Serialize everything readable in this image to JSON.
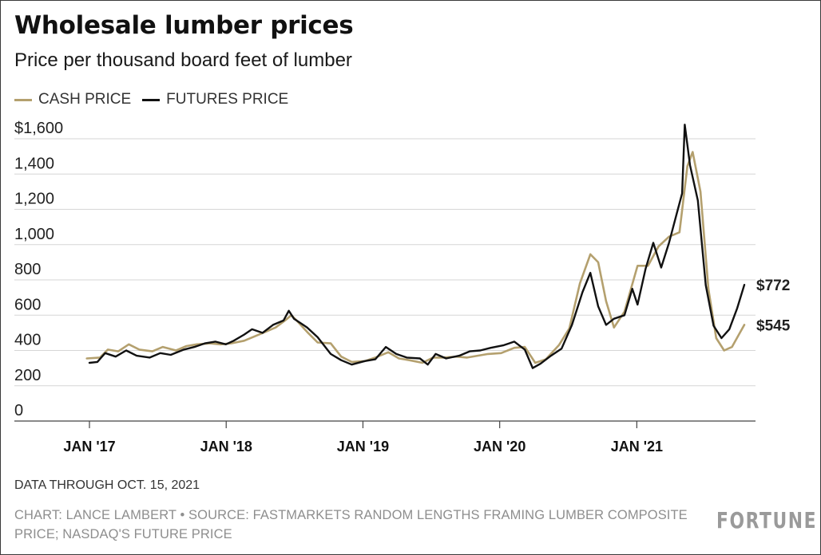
{
  "header": {
    "title": "Wholesale lumber prices",
    "subtitle": "Price per thousand board feet of lumber"
  },
  "legend": [
    {
      "label": "CASH PRICE",
      "color": "#b4a06e"
    },
    {
      "label": "FUTURES PRICE",
      "color": "#111111"
    }
  ],
  "footer": {
    "note": "DATA THROUGH OCT. 15, 2021",
    "credit": "CHART: LANCE LAMBERT • SOURCE: FASTMARKETS RANDOM LENGTHS FRAMING LUMBER COMPOSITE PRICE; NASDAQ'S FUTURE PRICE",
    "brand": "FORTUNE"
  },
  "chart_data": {
    "type": "line",
    "title": "Wholesale lumber prices",
    "subtitle": "Price per thousand board feet of lumber",
    "xlabel": "",
    "ylabel": "",
    "ylim": [
      0,
      1600
    ],
    "xlim": [
      "2016-12-01",
      "2021-10-31"
    ],
    "y_ticks": [
      {
        "value": 0,
        "label": "0"
      },
      {
        "value": 200,
        "label": "200"
      },
      {
        "value": 400,
        "label": "400"
      },
      {
        "value": 600,
        "label": "600"
      },
      {
        "value": 800,
        "label": "800"
      },
      {
        "value": 1000,
        "label": "1,000"
      },
      {
        "value": 1200,
        "label": "1,200"
      },
      {
        "value": 1400,
        "label": "1,400"
      },
      {
        "value": 1600,
        "label": "$1,600"
      }
    ],
    "x_ticks": [
      {
        "date": "2017-01-01",
        "label": "JAN '17"
      },
      {
        "date": "2018-01-01",
        "label": "JAN '18"
      },
      {
        "date": "2019-01-01",
        "label": "JAN '19"
      },
      {
        "date": "2020-01-01",
        "label": "JAN '20"
      },
      {
        "date": "2021-01-01",
        "label": "JAN '21"
      }
    ],
    "grid": true,
    "legend_position": "top-left",
    "series": [
      {
        "name": "CASH PRICE",
        "color": "#b4a06e",
        "points": [
          [
            "2016-12-25",
            355
          ],
          [
            "2017-01-29",
            360
          ],
          [
            "2017-02-19",
            405
          ],
          [
            "2017-03-19",
            395
          ],
          [
            "2017-04-16",
            435
          ],
          [
            "2017-05-14",
            405
          ],
          [
            "2017-06-18",
            395
          ],
          [
            "2017-07-16",
            420
          ],
          [
            "2017-08-20",
            400
          ],
          [
            "2017-09-17",
            425
          ],
          [
            "2017-10-15",
            435
          ],
          [
            "2017-11-19",
            440
          ],
          [
            "2017-12-17",
            435
          ],
          [
            "2018-01-14",
            440
          ],
          [
            "2018-02-18",
            455
          ],
          [
            "2018-03-18",
            480
          ],
          [
            "2018-04-15",
            505
          ],
          [
            "2018-05-13",
            530
          ],
          [
            "2018-06-10",
            575
          ],
          [
            "2018-06-24",
            600
          ],
          [
            "2018-07-08",
            570
          ],
          [
            "2018-08-05",
            505
          ],
          [
            "2018-09-02",
            445
          ],
          [
            "2018-10-07",
            440
          ],
          [
            "2018-11-04",
            365
          ],
          [
            "2018-12-02",
            335
          ],
          [
            "2019-01-06",
            340
          ],
          [
            "2019-02-03",
            360
          ],
          [
            "2019-03-10",
            390
          ],
          [
            "2019-04-07",
            355
          ],
          [
            "2019-05-05",
            345
          ],
          [
            "2019-06-09",
            330
          ],
          [
            "2019-07-07",
            360
          ],
          [
            "2019-08-04",
            360
          ],
          [
            "2019-09-08",
            365
          ],
          [
            "2019-10-06",
            360
          ],
          [
            "2019-11-03",
            370
          ],
          [
            "2019-12-01",
            380
          ],
          [
            "2020-01-05",
            385
          ],
          [
            "2020-02-09",
            415
          ],
          [
            "2020-03-08",
            420
          ],
          [
            "2020-04-05",
            330
          ],
          [
            "2020-05-03",
            350
          ],
          [
            "2020-06-07",
            430
          ],
          [
            "2020-07-05",
            525
          ],
          [
            "2020-08-02",
            780
          ],
          [
            "2020-08-30",
            945
          ],
          [
            "2020-09-20",
            900
          ],
          [
            "2020-10-11",
            680
          ],
          [
            "2020-11-01",
            530
          ],
          [
            "2020-11-29",
            620
          ],
          [
            "2021-01-03",
            880
          ],
          [
            "2021-01-31",
            880
          ],
          [
            "2021-02-28",
            990
          ],
          [
            "2021-03-28",
            1045
          ],
          [
            "2021-04-25",
            1070
          ],
          [
            "2021-05-16",
            1445
          ],
          [
            "2021-05-30",
            1525
          ],
          [
            "2021-06-20",
            1300
          ],
          [
            "2021-07-11",
            750
          ],
          [
            "2021-08-01",
            470
          ],
          [
            "2021-08-22",
            400
          ],
          [
            "2021-09-12",
            420
          ],
          [
            "2021-10-03",
            500
          ],
          [
            "2021-10-15",
            545
          ]
        ]
      },
      {
        "name": "FUTURES PRICE",
        "color": "#111111",
        "points": [
          [
            "2017-01-01",
            330
          ],
          [
            "2017-01-22",
            335
          ],
          [
            "2017-02-12",
            385
          ],
          [
            "2017-03-12",
            365
          ],
          [
            "2017-04-09",
            400
          ],
          [
            "2017-05-07",
            370
          ],
          [
            "2017-06-11",
            360
          ],
          [
            "2017-07-09",
            385
          ],
          [
            "2017-08-06",
            375
          ],
          [
            "2017-09-10",
            405
          ],
          [
            "2017-10-08",
            420
          ],
          [
            "2017-11-05",
            440
          ],
          [
            "2017-12-03",
            450
          ],
          [
            "2017-12-31",
            435
          ],
          [
            "2018-01-21",
            455
          ],
          [
            "2018-02-18",
            490
          ],
          [
            "2018-03-11",
            520
          ],
          [
            "2018-04-08",
            500
          ],
          [
            "2018-05-06",
            545
          ],
          [
            "2018-06-03",
            570
          ],
          [
            "2018-06-17",
            625
          ],
          [
            "2018-07-01",
            580
          ],
          [
            "2018-08-05",
            530
          ],
          [
            "2018-09-02",
            475
          ],
          [
            "2018-10-07",
            380
          ],
          [
            "2018-11-04",
            345
          ],
          [
            "2018-12-02",
            320
          ],
          [
            "2019-01-06",
            340
          ],
          [
            "2019-02-03",
            350
          ],
          [
            "2019-03-03",
            420
          ],
          [
            "2019-03-31",
            380
          ],
          [
            "2019-04-28",
            360
          ],
          [
            "2019-06-02",
            355
          ],
          [
            "2019-06-23",
            320
          ],
          [
            "2019-07-14",
            380
          ],
          [
            "2019-08-11",
            355
          ],
          [
            "2019-09-15",
            370
          ],
          [
            "2019-10-13",
            395
          ],
          [
            "2019-11-10",
            400
          ],
          [
            "2019-12-08",
            415
          ],
          [
            "2020-01-12",
            430
          ],
          [
            "2020-02-09",
            450
          ],
          [
            "2020-03-08",
            405
          ],
          [
            "2020-03-29",
            300
          ],
          [
            "2020-04-19",
            325
          ],
          [
            "2020-05-17",
            370
          ],
          [
            "2020-06-14",
            410
          ],
          [
            "2020-07-12",
            545
          ],
          [
            "2020-08-09",
            730
          ],
          [
            "2020-08-30",
            840
          ],
          [
            "2020-09-20",
            650
          ],
          [
            "2020-10-11",
            545
          ],
          [
            "2020-11-01",
            580
          ],
          [
            "2020-11-29",
            600
          ],
          [
            "2020-12-20",
            750
          ],
          [
            "2021-01-03",
            660
          ],
          [
            "2021-01-24",
            860
          ],
          [
            "2021-02-14",
            1010
          ],
          [
            "2021-03-07",
            870
          ],
          [
            "2021-03-28",
            1010
          ],
          [
            "2021-04-18",
            1180
          ],
          [
            "2021-05-02",
            1290
          ],
          [
            "2021-05-09",
            1680
          ],
          [
            "2021-05-23",
            1450
          ],
          [
            "2021-06-13",
            1250
          ],
          [
            "2021-07-04",
            770
          ],
          [
            "2021-07-25",
            540
          ],
          [
            "2021-08-15",
            470
          ],
          [
            "2021-09-05",
            520
          ],
          [
            "2021-09-26",
            640
          ],
          [
            "2021-10-15",
            772
          ]
        ]
      }
    ],
    "end_labels": [
      {
        "series": "FUTURES PRICE",
        "label": "$772"
      },
      {
        "series": "CASH PRICE",
        "label": "$545"
      }
    ]
  }
}
